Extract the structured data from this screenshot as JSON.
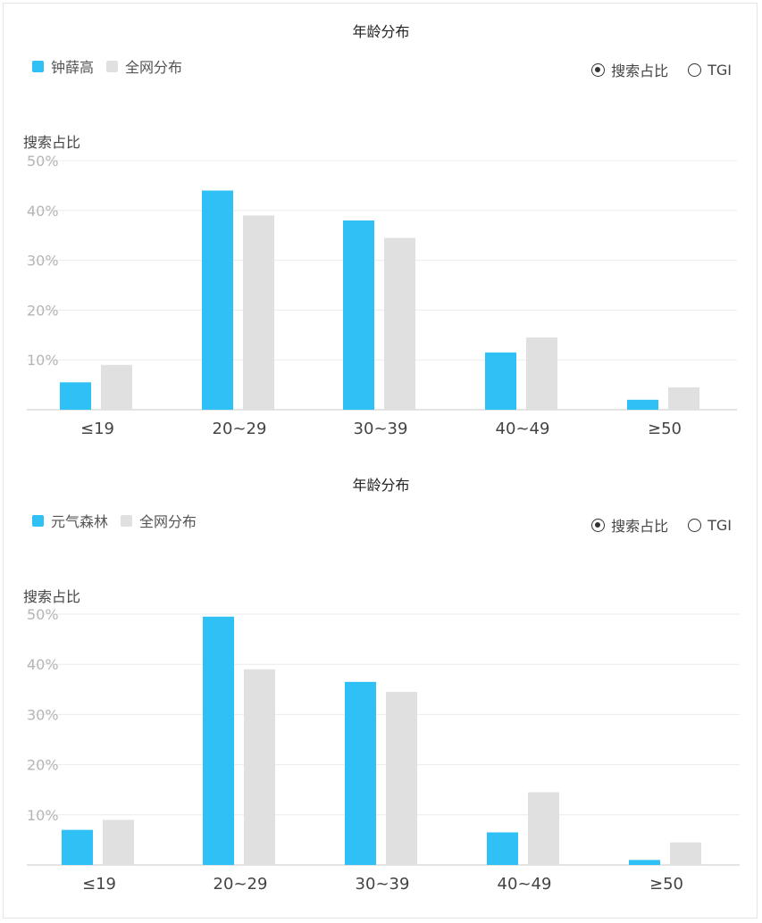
{
  "radio_options": {
    "share": "搜索占比",
    "tgi": "TGI"
  },
  "chart_data": [
    {
      "type": "bar",
      "title": "年龄分布",
      "ylabel": "搜索占比",
      "ylim": [
        0,
        50
      ],
      "yticks": [
        "50%",
        "40%",
        "30%",
        "20%",
        "10%"
      ],
      "categories": [
        "≤19",
        "20~29",
        "30~39",
        "40~49",
        "≥50"
      ],
      "series": [
        {
          "name": "钟薛高",
          "color": "#2fc1f5",
          "values": [
            5.5,
            44,
            38,
            11.5,
            2
          ]
        },
        {
          "name": "全网分布",
          "color": "#e0e0e0",
          "values": [
            9,
            39,
            34.5,
            14.5,
            4.5
          ]
        }
      ],
      "selected_mode": "share"
    },
    {
      "type": "bar",
      "title": "年龄分布",
      "ylabel": "搜索占比",
      "ylim": [
        0,
        50
      ],
      "yticks": [
        "50%",
        "40%",
        "30%",
        "20%",
        "10%"
      ],
      "categories": [
        "≤19",
        "20~29",
        "30~39",
        "40~49",
        "≥50"
      ],
      "series": [
        {
          "name": "元气森林",
          "color": "#2fc1f5",
          "values": [
            7,
            49.5,
            36.5,
            6.5,
            1
          ]
        },
        {
          "name": "全网分布",
          "color": "#e0e0e0",
          "values": [
            9,
            39,
            34.5,
            14.5,
            4.5
          ]
        }
      ],
      "selected_mode": "share"
    }
  ]
}
